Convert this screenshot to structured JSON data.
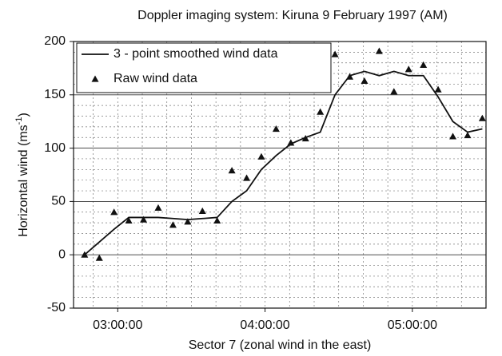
{
  "chart_data": {
    "type": "line",
    "title": "Doppler imaging system: Kiruna 9 February 1997 (AM)",
    "x_label": "Sector 7 (zonal wind in the east)",
    "y_label": "Horizontal wind (ms",
    "y_label_exponent": "-1",
    "y_label_end": ")",
    "x": [
      166.5,
      172.5,
      178.5,
      184.5,
      190.5,
      196.5,
      202.5,
      208.5,
      214.5,
      220.5,
      226.5,
      232.5,
      238.5,
      244.5,
      250.5,
      256.5,
      262.5,
      268.5,
      274.5,
      280.5,
      286.5,
      292.5,
      298.5,
      304.5,
      310.5,
      316.5,
      322.5,
      328.5
    ],
    "series": [
      {
        "name": "3 - point smoothed wind data",
        "color": "#111111",
        "marker": "line",
        "values": [
          0,
          12,
          24,
          35,
          35,
          35,
          34,
          33,
          34,
          35,
          50,
          60,
          80,
          93,
          104,
          110,
          115,
          150,
          168,
          172,
          168,
          172,
          168,
          168,
          148,
          125,
          115,
          118
        ]
      },
      {
        "name": "Raw wind data",
        "color": "#111111",
        "marker": "triangle",
        "values": [
          0,
          -3,
          40,
          32,
          33,
          44,
          28,
          31,
          41,
          32,
          79,
          72,
          92,
          118,
          105,
          109,
          134,
          188,
          167,
          163,
          191,
          153,
          174,
          178,
          155,
          111,
          112,
          128
        ]
      }
    ],
    "xlim": [
      162,
      330
    ],
    "xticks": [
      {
        "value": 180,
        "label": "03:00:00"
      },
      {
        "value": 240,
        "label": "04:00:00"
      },
      {
        "value": 300,
        "label": "05:00:00"
      }
    ],
    "xminor": [
      170,
      180,
      190,
      200,
      210,
      220,
      230,
      240,
      250,
      260,
      270,
      280,
      290,
      300,
      310,
      320
    ],
    "ylim": [
      -50,
      200
    ],
    "yticks": [
      -50,
      0,
      50,
      100,
      150,
      200
    ],
    "yminor": [
      -40,
      -30,
      -20,
      -10,
      10,
      20,
      30,
      40,
      60,
      70,
      80,
      90,
      110,
      120,
      130,
      140,
      160,
      170,
      180,
      190
    ],
    "grid": true,
    "legend": "upper left"
  }
}
